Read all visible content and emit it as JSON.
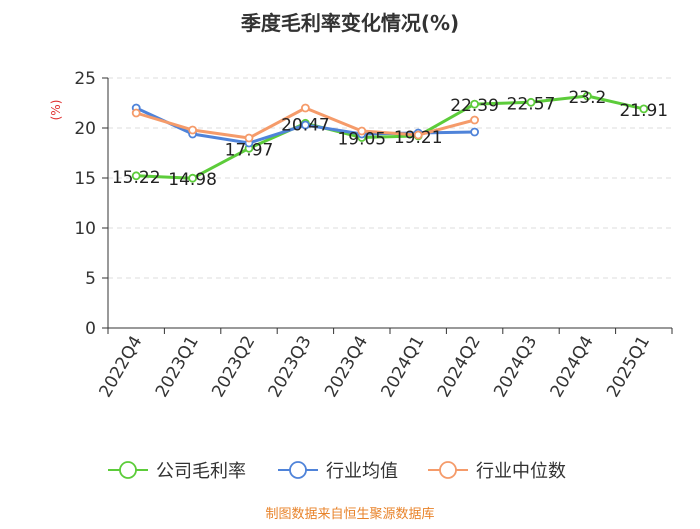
{
  "chart_data": {
    "type": "line",
    "title": "季度毛利率变化情况(%)",
    "ylabel": "(%)",
    "xlabel": "",
    "categories": [
      "2022Q4",
      "2023Q1",
      "2023Q2",
      "2023Q3",
      "2023Q4",
      "2024Q1",
      "2024Q2",
      "2024Q3",
      "2024Q4",
      "2025Q1"
    ],
    "ylim": [
      0,
      25
    ],
    "yticks": [
      0,
      5,
      10,
      15,
      20,
      25
    ],
    "grid": "horizontal dashed",
    "legend_position": "bottom",
    "series": [
      {
        "name": "公司毛利率",
        "color": "#5ccc3a",
        "values": [
          15.22,
          14.98,
          17.97,
          20.47,
          19.05,
          19.21,
          22.39,
          22.57,
          23.2,
          21.91
        ],
        "labels": [
          "15.22",
          "14.98",
          "17.97",
          "20.47",
          "19.05",
          "19.21",
          "22.39",
          "22.57",
          "23.2",
          "21.91"
        ]
      },
      {
        "name": "行业均值",
        "color": "#4f83d9",
        "values": [
          22.0,
          19.4,
          18.5,
          20.3,
          19.4,
          19.5,
          19.6,
          null,
          null,
          null
        ]
      },
      {
        "name": "行业中位数",
        "color": "#f59b6a",
        "values": [
          21.5,
          19.8,
          19.0,
          22.0,
          19.7,
          19.3,
          20.8,
          null,
          null,
          null
        ]
      }
    ],
    "source": "制图数据来自恒生聚源数据库",
    "colors": {
      "title": "#333333",
      "axis": "#333333",
      "grid": "#dddddd",
      "ylabel": "#e03030",
      "source": "#e8832a"
    }
  }
}
